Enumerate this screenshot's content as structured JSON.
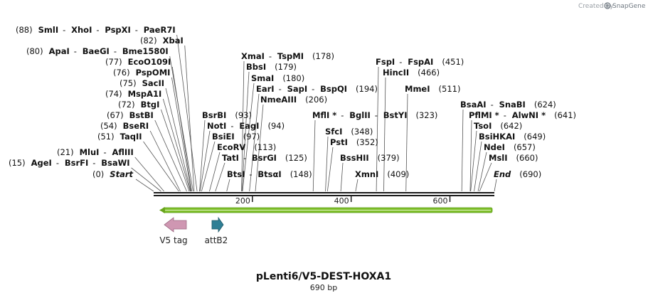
{
  "credit": {
    "prefix": "Created by",
    "brand": "SnapGene"
  },
  "map": {
    "title": "pLenti6/V5-DEST-HOXA1",
    "length_label": "690 bp",
    "length_bp": 690,
    "axis_ticks": [
      "200",
      "400",
      "600"
    ],
    "axis_tick_values": [
      200,
      400,
      600
    ]
  },
  "features": [
    {
      "name": "V5 tag",
      "direction": "reverse",
      "color": "#cf97b2"
    },
    {
      "name": "attB2",
      "direction": "forward",
      "color": "#2f7f95"
    }
  ],
  "orf": {
    "color": "#7fbf2a",
    "start": 1,
    "end": 690,
    "direction": "reverse"
  },
  "site_groups": [
    {
      "pos": 88,
      "pos_text": "(88)",
      "sites": [
        "SmlI",
        "XhoI",
        "PspXI",
        "PaeR7I"
      ]
    },
    {
      "pos": 82,
      "pos_text": "(82)",
      "sites": [
        "XbaI"
      ]
    },
    {
      "pos": 80,
      "pos_text": "(80)",
      "sites": [
        "ApaI",
        "BaeGI",
        "Bme1580I"
      ]
    },
    {
      "pos": 77,
      "pos_text": "(77)",
      "sites": [
        "EcoO109I"
      ]
    },
    {
      "pos": 76,
      "pos_text": "(76)",
      "sites": [
        "PspOMI"
      ]
    },
    {
      "pos": 75,
      "pos_text": "(75)",
      "sites": [
        "SacII"
      ]
    },
    {
      "pos": 74,
      "pos_text": "(74)",
      "sites": [
        "MspA1I"
      ]
    },
    {
      "pos": 72,
      "pos_text": "(72)",
      "sites": [
        "BtgI"
      ]
    },
    {
      "pos": 67,
      "pos_text": "(67)",
      "sites": [
        "BstBI"
      ]
    },
    {
      "pos": 54,
      "pos_text": "(54)",
      "sites": [
        "BseRI"
      ]
    },
    {
      "pos": 51,
      "pos_text": "(51)",
      "sites": [
        "TaqII"
      ]
    },
    {
      "pos": 21,
      "pos_text": "(21)",
      "sites": [
        "MluI",
        "AflIII"
      ]
    },
    {
      "pos": 15,
      "pos_text": "(15)",
      "sites": [
        "AgeI",
        "BsrFI",
        "BsaWI"
      ]
    },
    {
      "pos": 0,
      "pos_text": "(0)",
      "sites": [
        "Start"
      ]
    },
    {
      "pos": 178,
      "pos_text": "(178)",
      "sites": [
        "XmaI",
        "TspMI"
      ]
    },
    {
      "pos": 179,
      "pos_text": "(179)",
      "sites": [
        "BbsI"
      ]
    },
    {
      "pos": 180,
      "pos_text": "(180)",
      "sites": [
        "SmaI"
      ]
    },
    {
      "pos": 194,
      "pos_text": "(194)",
      "sites": [
        "EarI",
        "SapI",
        "BspQI"
      ]
    },
    {
      "pos": 206,
      "pos_text": "(206)",
      "sites": [
        "NmeAIII"
      ]
    },
    {
      "pos": 93,
      "pos_text": "(93)",
      "sites": [
        "BsrBI"
      ]
    },
    {
      "pos": 94,
      "pos_text": "(94)",
      "sites": [
        "NotI",
        "EagI"
      ]
    },
    {
      "pos": 97,
      "pos_text": "(97)",
      "sites": [
        "BsiEI"
      ]
    },
    {
      "pos": 113,
      "pos_text": "(113)",
      "sites": [
        "EcoRV"
      ]
    },
    {
      "pos": 125,
      "pos_text": "(125)",
      "sites": [
        "TatI",
        "BsrGI"
      ]
    },
    {
      "pos": 148,
      "pos_text": "(148)",
      "sites": [
        "BtsI",
        "BtsαI"
      ]
    },
    {
      "pos": 451,
      "pos_text": "(451)",
      "sites": [
        "FspI",
        "FspAI"
      ]
    },
    {
      "pos": 466,
      "pos_text": "(466)",
      "sites": [
        "HincII"
      ]
    },
    {
      "pos": 511,
      "pos_text": "(511)",
      "sites": [
        "MmeI"
      ]
    },
    {
      "pos": 323,
      "pos_text": "(323)",
      "sites": [
        "MflI *",
        "BglII",
        "BstYI"
      ]
    },
    {
      "pos": 348,
      "pos_text": "(348)",
      "sites": [
        "SfcI"
      ]
    },
    {
      "pos": 352,
      "pos_text": "(352)",
      "sites": [
        "PstI"
      ]
    },
    {
      "pos": 379,
      "pos_text": "(379)",
      "sites": [
        "BssHII"
      ]
    },
    {
      "pos": 409,
      "pos_text": "(409)",
      "sites": [
        "XmnI"
      ]
    },
    {
      "pos": 624,
      "pos_text": "(624)",
      "sites": [
        "BsaAI",
        "SnaBI"
      ]
    },
    {
      "pos": 641,
      "pos_text": "(641)",
      "sites": [
        "PflMI *",
        "AlwNI *"
      ]
    },
    {
      "pos": 642,
      "pos_text": "(642)",
      "sites": [
        "TsoI"
      ]
    },
    {
      "pos": 649,
      "pos_text": "(649)",
      "sites": [
        "BsiHKAI"
      ]
    },
    {
      "pos": 657,
      "pos_text": "(657)",
      "sites": [
        "NdeI"
      ]
    },
    {
      "pos": 660,
      "pos_text": "(660)",
      "sites": [
        "MslI"
      ]
    },
    {
      "pos": 690,
      "pos_text": "(690)",
      "sites": [
        "End"
      ]
    }
  ]
}
